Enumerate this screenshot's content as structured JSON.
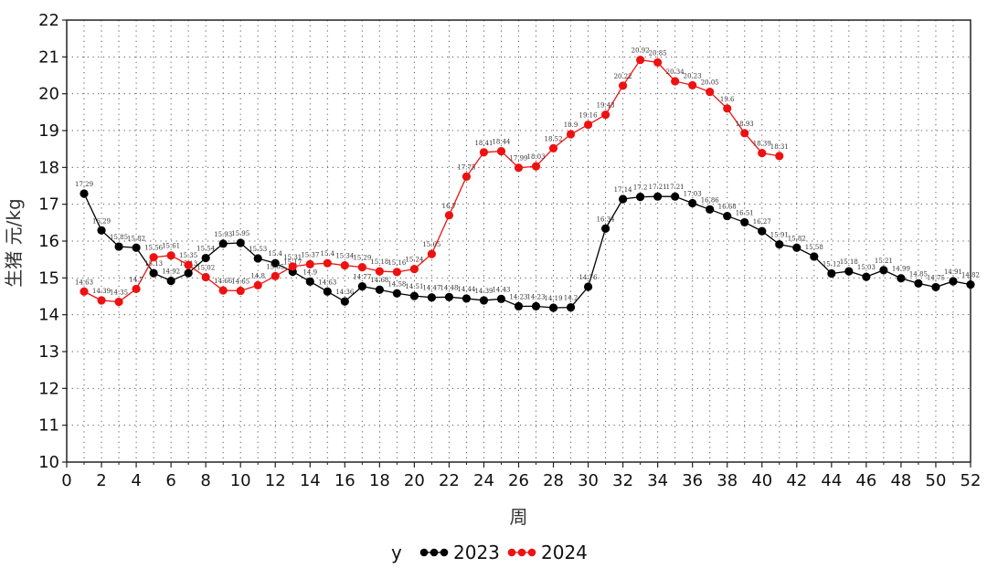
{
  "chart_data": {
    "type": "line",
    "xlabel": "周",
    "ylabel": "生猪 元/kg",
    "xlim": [
      0,
      52
    ],
    "ylim": [
      10,
      22
    ],
    "xticks": [
      "0",
      "2",
      "4",
      "6",
      "8",
      "10",
      "12",
      "14",
      "16",
      "18",
      "20",
      "22",
      "24",
      "26",
      "28",
      "30",
      "32",
      "34",
      "36",
      "38",
      "40",
      "42",
      "44",
      "46",
      "48",
      "50",
      "52"
    ],
    "yticks": [
      "10",
      "11",
      "12",
      "13",
      "14",
      "15",
      "16",
      "17",
      "18",
      "19",
      "20",
      "21",
      "22"
    ],
    "grid": true,
    "legend": {
      "position": "bottom",
      "title": "y"
    },
    "series": [
      {
        "name": "2023",
        "color": "#000000",
        "x": [
          1,
          2,
          3,
          4,
          5,
          6,
          7,
          8,
          9,
          10,
          11,
          12,
          13,
          14,
          15,
          16,
          17,
          18,
          19,
          20,
          21,
          22,
          23,
          24,
          25,
          26,
          27,
          28,
          29,
          30,
          31,
          32,
          33,
          34,
          35,
          36,
          37,
          38,
          39,
          40,
          41,
          42,
          43,
          44,
          45,
          46,
          47,
          48,
          49,
          50,
          51,
          52
        ],
        "values": [
          17.29,
          16.29,
          15.85,
          15.82,
          15.13,
          14.92,
          15.13,
          15.54,
          15.93,
          15.95,
          15.53,
          15.4,
          15.17,
          14.9,
          14.63,
          14.36,
          14.77,
          14.68,
          14.58,
          14.51,
          14.47,
          14.48,
          14.44,
          14.39,
          14.43,
          14.23,
          14.23,
          14.19,
          14.2,
          14.76,
          16.34,
          17.14,
          17.2,
          17.21,
          17.21,
          17.03,
          16.86,
          16.68,
          16.51,
          16.27,
          15.91,
          15.82,
          15.58,
          15.12,
          15.18,
          15.03,
          15.21,
          14.99,
          14.85,
          14.75,
          14.91,
          14.82
        ],
        "labels": [
          "17.29",
          "16.29",
          "15.85",
          "15.82",
          "15.13",
          "14.92",
          "15.13",
          "15.54",
          "15.93",
          "15.95",
          "15.53",
          "15.4",
          "15.17",
          "14.9",
          "14.63",
          "14.36",
          "14.77",
          "14.68",
          "14.58",
          "14.51",
          "14.47",
          "14.48",
          "14.44",
          "14.39",
          "14.43",
          "14.23",
          "14.23",
          "14.19",
          "14.2",
          "14.76",
          "16.34",
          "17.14",
          "17.2",
          "17.21",
          "17.21",
          "17.03",
          "16.86",
          "16.68",
          "16.51",
          "16.27",
          "15.91",
          "15.82",
          "15.58",
          "15.12",
          "15.18",
          "15.03",
          "15.21",
          "14.99",
          "14.85",
          "14.75",
          "14.91",
          "14.82"
        ]
      },
      {
        "name": "2024",
        "color": "#ee1111",
        "x": [
          1,
          2,
          3,
          4,
          5,
          6,
          7,
          8,
          9,
          10,
          11,
          12,
          13,
          14,
          15,
          16,
          17,
          18,
          19,
          20,
          21,
          22,
          23,
          24,
          25,
          26,
          27,
          28,
          29,
          30,
          31,
          32,
          33,
          34,
          35,
          36,
          37,
          38,
          39,
          40,
          41
        ],
        "values": [
          14.63,
          14.39,
          14.35,
          14.7,
          15.56,
          15.61,
          15.35,
          15.02,
          14.66,
          14.65,
          14.8,
          15.05,
          15.31,
          15.37,
          15.4,
          15.34,
          15.29,
          15.18,
          15.16,
          15.24,
          15.65,
          16.7,
          17.75,
          18.41,
          18.44,
          17.99,
          18.03,
          18.52,
          18.9,
          19.16,
          19.43,
          20.22,
          20.92,
          20.85,
          20.34,
          20.23,
          20.05,
          19.6,
          18.93,
          18.39,
          18.31
        ],
        "labels": [
          "14.63",
          "14.39",
          "14.35",
          "14.7",
          "15.56",
          "15.61",
          "15.35",
          "15.02",
          "14.66",
          "14.65",
          "14.8",
          "15.05",
          "15.31",
          "15.37",
          "15.4",
          "15.34",
          "15.29",
          "15.18",
          "15.16",
          "15.24",
          "15.65",
          "16.7",
          "17.75",
          "18.41",
          "18.44",
          "17.99",
          "18.03",
          "18.52",
          "18.9",
          "19.16",
          "19.43",
          "20.22",
          "20.92",
          "20.85",
          "20.34",
          "20.23",
          "20.05",
          "19.6",
          "18.93",
          "18.39",
          "18.31"
        ]
      }
    ]
  }
}
